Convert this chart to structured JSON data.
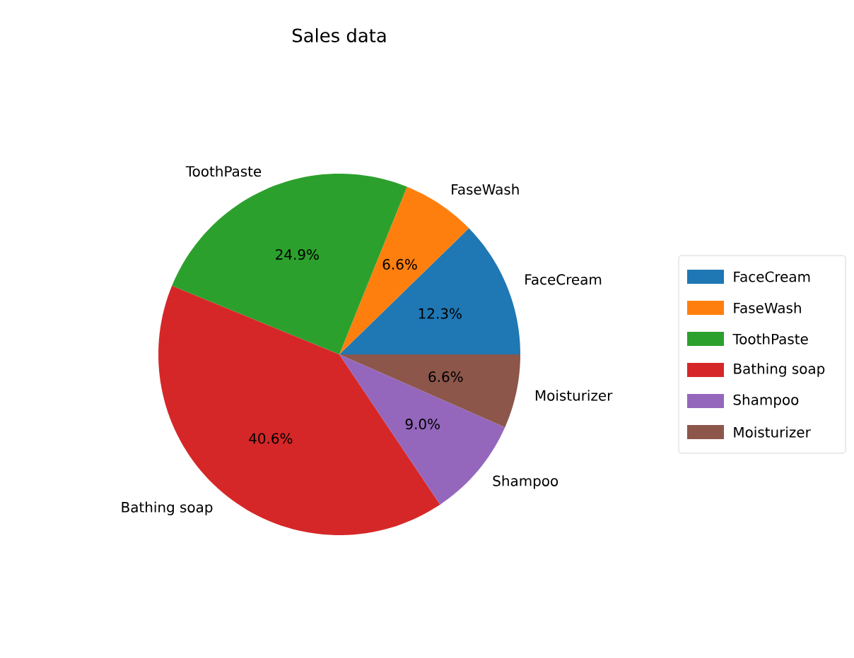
{
  "chart_data": {
    "type": "pie",
    "title": "Sales data",
    "categories": [
      "FaceCream",
      "FaseWash",
      "ToothPaste",
      "Bathing soap",
      "Shampoo",
      "Moisturizer"
    ],
    "values": [
      12.3,
      6.6,
      24.9,
      40.6,
      9.0,
      6.6
    ],
    "value_labels": [
      "12.3%",
      "6.6%",
      "24.9%",
      "40.6%",
      "9.0%",
      "6.6%"
    ],
    "colors": [
      "#1f77b4",
      "#ff7f0e",
      "#2ca02c",
      "#d62728",
      "#9467bd",
      "#8c564b"
    ],
    "legend": "right"
  }
}
